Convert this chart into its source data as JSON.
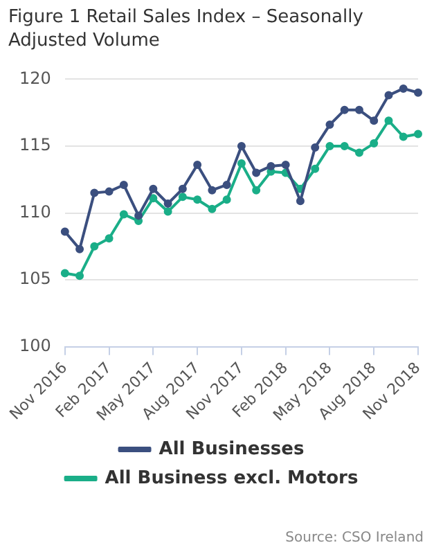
{
  "chart_data": {
    "type": "line",
    "title": "Figure 1 Retail Sales Index – Seasonally Adjusted Volume",
    "categories": [
      "Nov 2016",
      null,
      null,
      "Feb 2017",
      null,
      null,
      "May 2017",
      null,
      null,
      "Aug 2017",
      null,
      null,
      "Nov 2017",
      null,
      null,
      "Feb 2018",
      null,
      null,
      "May 2018",
      null,
      null,
      "Aug 2018",
      null,
      null,
      "Nov 2018"
    ],
    "series": [
      {
        "name": "All Businesses",
        "color": "#3b4f7f",
        "values": [
          108.6,
          107.3,
          111.5,
          111.6,
          112.1,
          109.8,
          111.8,
          110.7,
          111.8,
          113.6,
          111.7,
          112.1,
          115.0,
          113.0,
          113.5,
          113.6,
          110.9,
          114.9,
          116.6,
          117.7,
          117.7,
          116.9,
          118.8,
          119.3,
          119.0
        ]
      },
      {
        "name": "All Business excl. Motors",
        "color": "#1aae88",
        "values": [
          105.5,
          105.3,
          107.5,
          108.1,
          109.9,
          109.4,
          111.1,
          110.1,
          111.2,
          111.0,
          110.3,
          111.0,
          113.7,
          111.7,
          113.1,
          113.0,
          111.8,
          113.3,
          115.0,
          115.0,
          114.5,
          115.2,
          116.9,
          115.7,
          115.9
        ]
      }
    ],
    "ylim": [
      100,
      120
    ],
    "yticks": [
      100,
      105,
      110,
      115,
      120
    ],
    "grid": "y",
    "legend": "bottom",
    "marker": "circle",
    "line_style": "solid",
    "annotations": [
      "Source: CSO Ireland"
    ]
  }
}
